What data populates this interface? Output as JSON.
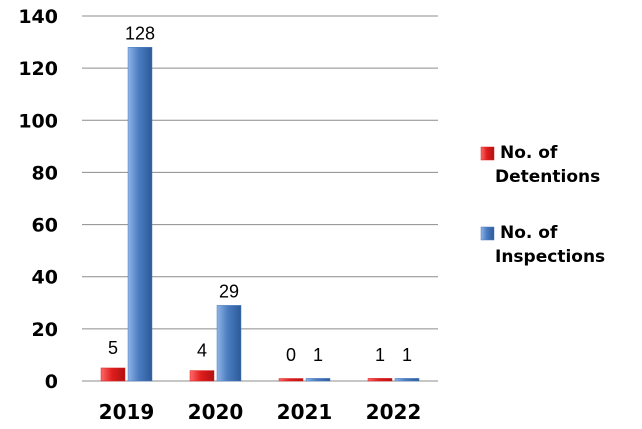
{
  "chart_data": {
    "type": "bar",
    "categories": [
      "2019",
      "2020",
      "2021",
      "2022"
    ],
    "series": [
      {
        "name": "No. of Detentions",
        "values": [
          5,
          4,
          0,
          1
        ],
        "color": "#e01e1e",
        "label_lines": [
          "No. of",
          "Detentions"
        ]
      },
      {
        "name": "No. of Inspections",
        "values": [
          128,
          29,
          1,
          1
        ],
        "color": "#4a7cc0",
        "label_lines": [
          "No. of",
          "Inspections"
        ]
      }
    ],
    "ylim": [
      0,
      140
    ],
    "yticks": [
      0,
      20,
      40,
      60,
      80,
      100,
      120,
      140
    ],
    "grid": true,
    "legend": "right"
  }
}
